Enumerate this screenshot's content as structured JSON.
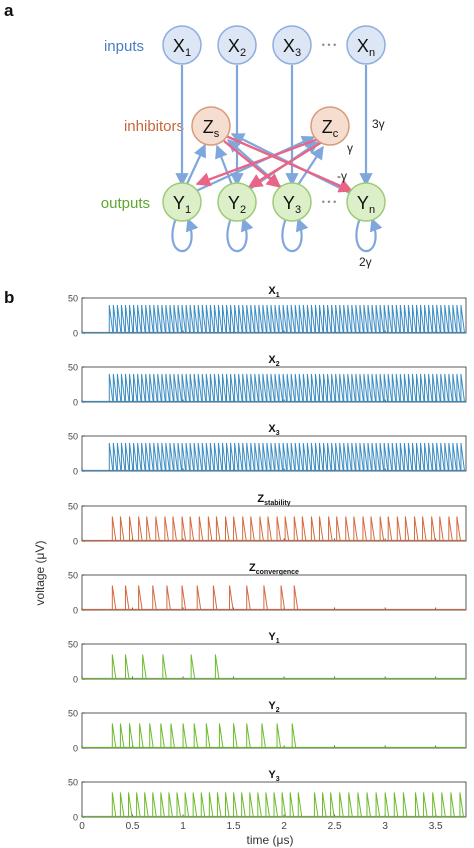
{
  "panel_a": {
    "letter": "a",
    "row_labels": {
      "inputs": "inputs",
      "inhibitors": "inhibitors",
      "outputs": "outputs"
    },
    "inputs": [
      {
        "base": "X",
        "sub": "1"
      },
      {
        "base": "X",
        "sub": "2"
      },
      {
        "base": "X",
        "sub": "3"
      },
      {
        "base": "X",
        "sub": "n"
      }
    ],
    "ellipsis": "• • •",
    "inhibitors": [
      {
        "base": "Z",
        "sub": "s"
      },
      {
        "base": "Z",
        "sub": "c"
      }
    ],
    "outputs": [
      {
        "base": "Y",
        "sub": "1"
      },
      {
        "base": "Y",
        "sub": "2"
      },
      {
        "base": "Y",
        "sub": "3"
      },
      {
        "base": "Y",
        "sub": "n"
      }
    ],
    "weights": {
      "input_to_output": "3γ",
      "output_to_inhibitor": "γ",
      "inhibitor_to_output": "-γ",
      "self_loop": "2γ"
    },
    "colors": {
      "inputs": "#4a7ec4",
      "inhibitors": "#c8653a",
      "outputs": "#5ea82e",
      "inhibit_arrow": "#e86587",
      "edge": "#7fa7db"
    }
  },
  "panel_b": {
    "letter": "b",
    "ylabel": "voltage (μV)",
    "xlabel": "time (μs)",
    "yticks": [
      "50",
      "0"
    ],
    "xticks": [
      "0",
      "0.5",
      "1",
      "1.5",
      "2",
      "2.5",
      "3",
      "3.5"
    ],
    "colors": {
      "inputs": "#3a8cc4",
      "inhibitors": "#d36b3f",
      "outputs": "#6cbb2e"
    }
  },
  "chart_data": [
    {
      "type": "line",
      "title": "X1",
      "title_base": "X",
      "title_sub": "1",
      "color": "#3a8cc4",
      "ylim": [
        0,
        50
      ],
      "xlim": [
        0,
        3.8
      ],
      "onset": 0.27,
      "spike_height": 40,
      "spike_times": [
        0.27,
        0.31,
        0.35,
        0.39,
        0.43,
        0.47,
        0.51,
        0.55,
        0.59,
        0.63,
        0.67,
        0.71,
        0.75,
        0.79,
        0.83,
        0.87,
        0.91,
        0.95,
        0.99,
        1.03,
        1.07,
        1.11,
        1.15,
        1.19,
        1.23,
        1.27,
        1.31,
        1.35,
        1.39,
        1.43,
        1.47,
        1.51,
        1.55,
        1.59,
        1.63,
        1.67,
        1.71,
        1.75,
        1.79,
        1.83,
        1.87,
        1.91,
        1.95,
        1.99,
        2.03,
        2.07,
        2.11,
        2.15,
        2.19,
        2.23,
        2.27,
        2.31,
        2.35,
        2.39,
        2.43,
        2.47,
        2.51,
        2.55,
        2.59,
        2.63,
        2.67,
        2.71,
        2.75,
        2.79,
        2.83,
        2.87,
        2.91,
        2.95,
        2.99,
        3.03,
        3.07,
        3.11,
        3.15,
        3.19,
        3.23,
        3.27,
        3.31,
        3.35,
        3.39,
        3.43,
        3.47,
        3.51,
        3.55,
        3.59,
        3.63,
        3.67,
        3.71,
        3.75
      ]
    },
    {
      "type": "line",
      "title": "X2",
      "title_base": "X",
      "title_sub": "2",
      "color": "#3a8cc4",
      "ylim": [
        0,
        50
      ],
      "xlim": [
        0,
        3.8
      ],
      "onset": 0.27,
      "spike_height": 40,
      "spike_times": [
        0.27,
        0.31,
        0.35,
        0.39,
        0.43,
        0.47,
        0.51,
        0.55,
        0.59,
        0.63,
        0.67,
        0.71,
        0.75,
        0.79,
        0.83,
        0.87,
        0.91,
        0.95,
        0.99,
        1.03,
        1.07,
        1.11,
        1.15,
        1.19,
        1.23,
        1.27,
        1.31,
        1.35,
        1.39,
        1.43,
        1.47,
        1.51,
        1.55,
        1.59,
        1.63,
        1.67,
        1.71,
        1.75,
        1.79,
        1.83,
        1.87,
        1.91,
        1.95,
        1.99,
        2.03,
        2.07,
        2.11,
        2.15,
        2.19,
        2.23,
        2.27,
        2.31,
        2.35,
        2.39,
        2.43,
        2.47,
        2.51,
        2.55,
        2.59,
        2.63,
        2.67,
        2.71,
        2.75,
        2.79,
        2.83,
        2.87,
        2.91,
        2.95,
        2.99,
        3.03,
        3.07,
        3.11,
        3.15,
        3.19,
        3.23,
        3.27,
        3.31,
        3.35,
        3.39,
        3.43,
        3.47,
        3.51,
        3.55,
        3.59,
        3.63,
        3.67,
        3.71,
        3.75
      ]
    },
    {
      "type": "line",
      "title": "X3",
      "title_base": "X",
      "title_sub": "3",
      "color": "#3a8cc4",
      "ylim": [
        0,
        50
      ],
      "xlim": [
        0,
        3.8
      ],
      "onset": 0.27,
      "spike_height": 40,
      "spike_times": [
        0.27,
        0.31,
        0.35,
        0.39,
        0.43,
        0.47,
        0.51,
        0.55,
        0.59,
        0.63,
        0.67,
        0.71,
        0.75,
        0.79,
        0.83,
        0.87,
        0.91,
        0.95,
        0.99,
        1.03,
        1.07,
        1.11,
        1.15,
        1.19,
        1.23,
        1.27,
        1.31,
        1.35,
        1.39,
        1.43,
        1.47,
        1.51,
        1.55,
        1.59,
        1.63,
        1.67,
        1.71,
        1.75,
        1.79,
        1.83,
        1.87,
        1.91,
        1.95,
        1.99,
        2.03,
        2.07,
        2.11,
        2.15,
        2.19,
        2.23,
        2.27,
        2.31,
        2.35,
        2.39,
        2.43,
        2.47,
        2.51,
        2.55,
        2.59,
        2.63,
        2.67,
        2.71,
        2.75,
        2.79,
        2.83,
        2.87,
        2.91,
        2.95,
        2.99,
        3.03,
        3.07,
        3.11,
        3.15,
        3.19,
        3.23,
        3.27,
        3.31,
        3.35,
        3.39,
        3.43,
        3.47,
        3.51,
        3.55,
        3.59,
        3.63,
        3.67,
        3.71,
        3.75
      ]
    },
    {
      "type": "line",
      "title": "Zstability",
      "title_base": "Z",
      "title_sub": "stability",
      "color": "#d36b3f",
      "ylim": [
        0,
        50
      ],
      "xlim": [
        0,
        3.8
      ],
      "spike_height": 35,
      "spike_times": [
        0.3,
        0.38,
        0.47,
        0.56,
        0.64,
        0.73,
        0.82,
        0.9,
        0.99,
        1.07,
        1.16,
        1.25,
        1.33,
        1.42,
        1.5,
        1.59,
        1.67,
        1.76,
        1.84,
        1.93,
        2.01,
        2.1,
        2.18,
        2.27,
        2.35,
        2.44,
        2.52,
        2.61,
        2.69,
        2.78,
        2.86,
        2.95,
        3.03,
        3.12,
        3.2,
        3.29,
        3.37,
        3.46,
        3.54,
        3.63,
        3.71
      ]
    },
    {
      "type": "line",
      "title": "Zconvergence",
      "title_base": "Z",
      "title_sub": "convergence",
      "color": "#d36b3f",
      "ylim": [
        0,
        50
      ],
      "xlim": [
        0,
        3.8
      ],
      "spike_height": 35,
      "spike_times": [
        0.3,
        0.43,
        0.56,
        0.7,
        0.84,
        0.99,
        1.14,
        1.3,
        1.46,
        1.63,
        1.8,
        1.97,
        2.1
      ]
    },
    {
      "type": "line",
      "title": "Y1",
      "title_base": "Y",
      "title_sub": "1",
      "color": "#6cbb2e",
      "ylim": [
        0,
        50
      ],
      "xlim": [
        0,
        3.8
      ],
      "spike_height": 35,
      "spike_times": [
        0.3,
        0.43,
        0.6,
        0.8,
        1.08,
        1.32
      ]
    },
    {
      "type": "line",
      "title": "Y2",
      "title_base": "Y",
      "title_sub": "2",
      "color": "#6cbb2e",
      "ylim": [
        0,
        50
      ],
      "xlim": [
        0,
        3.8
      ],
      "spike_height": 35,
      "spike_times": [
        0.3,
        0.38,
        0.47,
        0.57,
        0.67,
        0.78,
        0.88,
        1.0,
        1.11,
        1.23,
        1.36,
        1.5,
        1.63,
        1.78,
        1.93,
        2.08
      ]
    },
    {
      "type": "line",
      "title": "Y3",
      "title_base": "Y",
      "title_sub": "3",
      "color": "#6cbb2e",
      "ylim": [
        0,
        50
      ],
      "xlim": [
        0,
        3.8
      ],
      "spike_height": 35,
      "spike_times": [
        0.3,
        0.38,
        0.46,
        0.54,
        0.62,
        0.7,
        0.78,
        0.86,
        0.94,
        1.02,
        1.1,
        1.18,
        1.26,
        1.34,
        1.42,
        1.5,
        1.58,
        1.66,
        1.74,
        1.82,
        1.9,
        1.98,
        2.06,
        2.14,
        2.3,
        2.38,
        2.46,
        2.55,
        2.64,
        2.73,
        2.82,
        2.91,
        3.0,
        3.09,
        3.18,
        3.3,
        3.38,
        3.47,
        3.56,
        3.65,
        3.74
      ]
    }
  ]
}
